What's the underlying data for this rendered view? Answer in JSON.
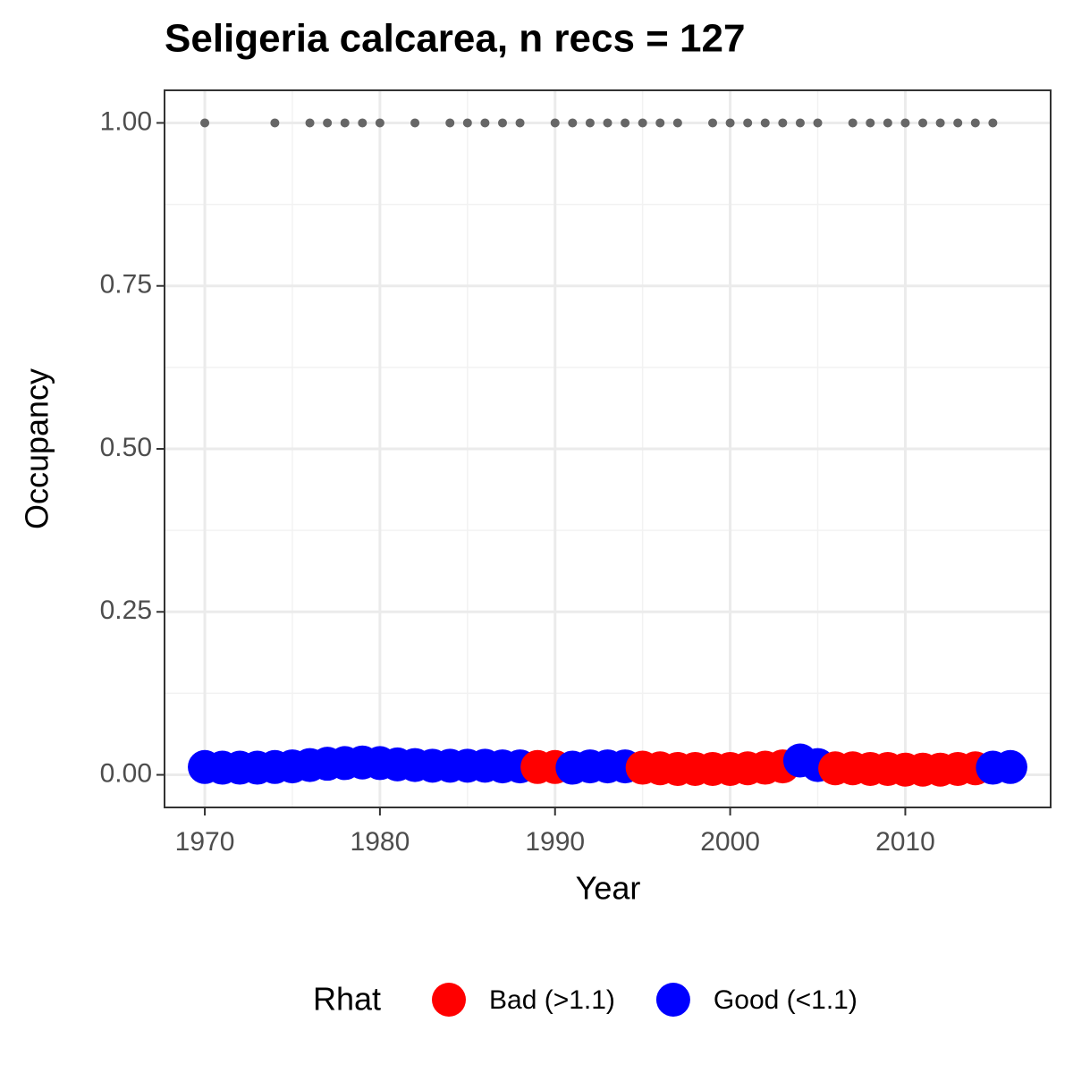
{
  "chart_data": {
    "type": "scatter",
    "title": "Seligeria calcarea, n recs = 127",
    "x_label": "Year",
    "y_label": "Occupancy",
    "legend_title": "Rhat",
    "legend_position": "bottom",
    "grid": true,
    "xlim": [
      1967.7,
      2018.3
    ],
    "xticks": [
      1970,
      1980,
      1990,
      2000,
      2010
    ],
    "ylim": [
      -0.05,
      1.05
    ],
    "yticks": [
      {
        "value": 0,
        "label": "0.00"
      },
      {
        "value": 0.25,
        "label": "0.25"
      },
      {
        "value": 0.5,
        "label": "0.50"
      },
      {
        "value": 0.75,
        "label": "0.75"
      },
      {
        "value": 1,
        "label": "1.00"
      }
    ],
    "series": [
      {
        "name": "Bad (>1.1)",
        "color": "#ff0000",
        "x": [
          1989,
          1990,
          1995,
          1996,
          1997,
          1998,
          1999,
          2000,
          2001,
          2002,
          2003,
          2006,
          2007,
          2008,
          2009,
          2010,
          2011,
          2012,
          2013,
          2014
        ],
        "values": [
          0.012,
          0.012,
          0.011,
          0.01,
          0.009,
          0.009,
          0.009,
          0.009,
          0.01,
          0.011,
          0.013,
          0.01,
          0.01,
          0.009,
          0.009,
          0.008,
          0.008,
          0.008,
          0.009,
          0.01
        ]
      },
      {
        "name": "Good (<1.1)",
        "color": "#0000ff",
        "x": [
          1970,
          1971,
          1972,
          1973,
          1974,
          1975,
          1976,
          1977,
          1978,
          1979,
          1980,
          1981,
          1982,
          1983,
          1984,
          1985,
          1986,
          1987,
          1988,
          1991,
          1992,
          1993,
          1994,
          2004,
          2005,
          2015,
          2016
        ],
        "values": [
          0.012,
          0.011,
          0.011,
          0.011,
          0.012,
          0.013,
          0.015,
          0.017,
          0.018,
          0.019,
          0.018,
          0.016,
          0.015,
          0.014,
          0.014,
          0.014,
          0.014,
          0.013,
          0.013,
          0.011,
          0.013,
          0.013,
          0.013,
          0.022,
          0.015,
          0.011,
          0.012
        ]
      }
    ],
    "records": {
      "color": "#666666",
      "x": [
        1970,
        1974,
        1976,
        1977,
        1978,
        1979,
        1980,
        1982,
        1984,
        1985,
        1986,
        1987,
        1988,
        1990,
        1991,
        1992,
        1993,
        1994,
        1995,
        1996,
        1997,
        1999,
        2000,
        2001,
        2002,
        2003,
        2004,
        2005,
        2007,
        2008,
        2009,
        2010,
        2011,
        2012,
        2013,
        2014,
        2015
      ],
      "values": [
        1,
        1,
        1,
        1,
        1,
        1,
        1,
        1,
        1,
        1,
        1,
        1,
        1,
        1,
        1,
        1,
        1,
        1,
        1,
        1,
        1,
        1,
        1,
        1,
        1,
        1,
        1,
        1,
        1,
        1,
        1,
        1,
        1,
        1,
        1,
        1,
        1
      ]
    }
  }
}
